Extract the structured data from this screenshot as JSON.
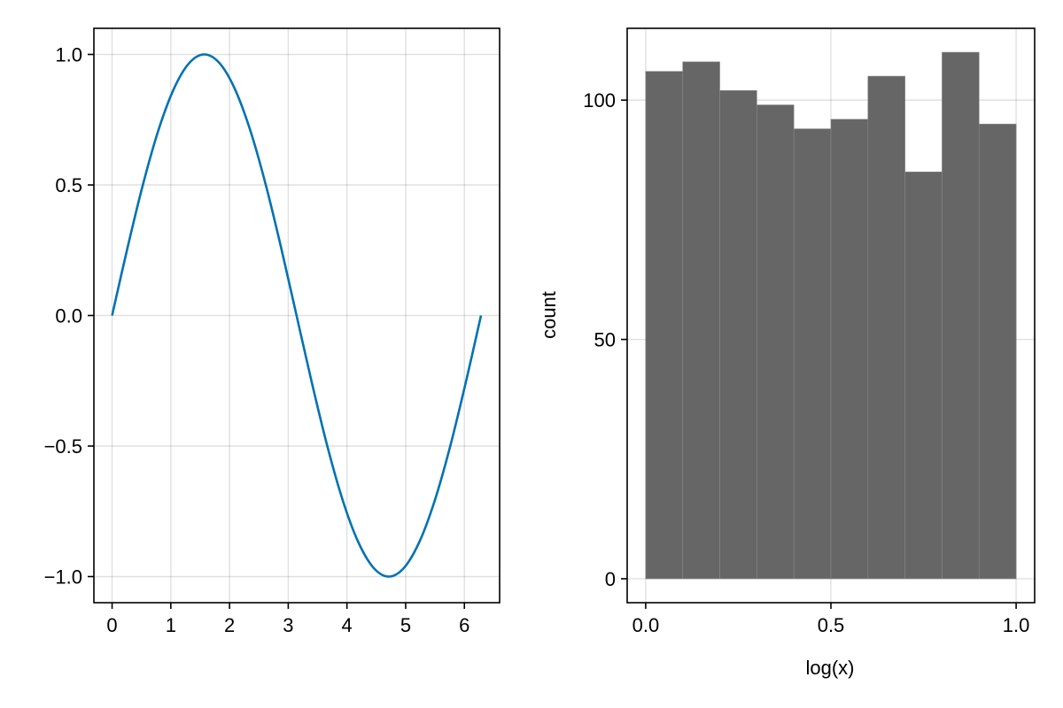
{
  "chart_data": [
    {
      "type": "line",
      "title": "",
      "xlabel": "",
      "ylabel": "",
      "xlim": [
        -0.31,
        6.6
      ],
      "ylim": [
        -1.1,
        1.1
      ],
      "xticks": [
        0,
        1,
        2,
        3,
        4,
        5,
        6
      ],
      "xtick_labels": [
        "0",
        "1",
        "2",
        "3",
        "4",
        "5",
        "6"
      ],
      "yticks": [
        -1.0,
        -0.5,
        0.0,
        0.5,
        1.0
      ],
      "ytick_labels": [
        "−1.0",
        "−0.5",
        "0.0",
        "0.5",
        "1.0"
      ],
      "grid": true,
      "series": [
        {
          "color": "#0072b2",
          "x": [
            0,
            0.2618,
            0.5236,
            0.7854,
            1.0472,
            1.309,
            1.5708,
            1.8326,
            2.0944,
            2.3562,
            2.618,
            2.8798,
            3.1416,
            3.4034,
            3.6652,
            3.927,
            4.1888,
            4.4506,
            4.7124,
            4.9742,
            5.236,
            5.4978,
            5.7596,
            6.0214,
            6.2832
          ],
          "y": [
            0,
            0.2588,
            0.5,
            0.7071,
            0.866,
            0.9659,
            1.0,
            0.9659,
            0.866,
            0.7071,
            0.5,
            0.2588,
            0,
            -0.2588,
            -0.5,
            -0.7071,
            -0.866,
            -0.9659,
            -1.0,
            -0.9659,
            -0.866,
            -0.7071,
            -0.5,
            -0.2588,
            0
          ]
        }
      ]
    },
    {
      "type": "bar",
      "title": "",
      "xlabel": "log(x)",
      "ylabel": "count",
      "xlim": [
        -0.05,
        1.05
      ],
      "ylim": [
        -5,
        115
      ],
      "xticks": [
        0.0,
        0.5,
        1.0
      ],
      "xtick_labels": [
        "0.0",
        "0.5",
        "1.0"
      ],
      "yticks": [
        0,
        50,
        100
      ],
      "ytick_labels": [
        "0",
        "50",
        "100"
      ],
      "grid": true,
      "bin_edges": [
        0.0,
        0.1,
        0.2,
        0.3,
        0.4,
        0.5,
        0.6,
        0.7,
        0.8,
        0.9,
        1.0
      ],
      "values": [
        106,
        108,
        102,
        99,
        94,
        96,
        105,
        85,
        110,
        95
      ],
      "color": "#666666"
    }
  ]
}
